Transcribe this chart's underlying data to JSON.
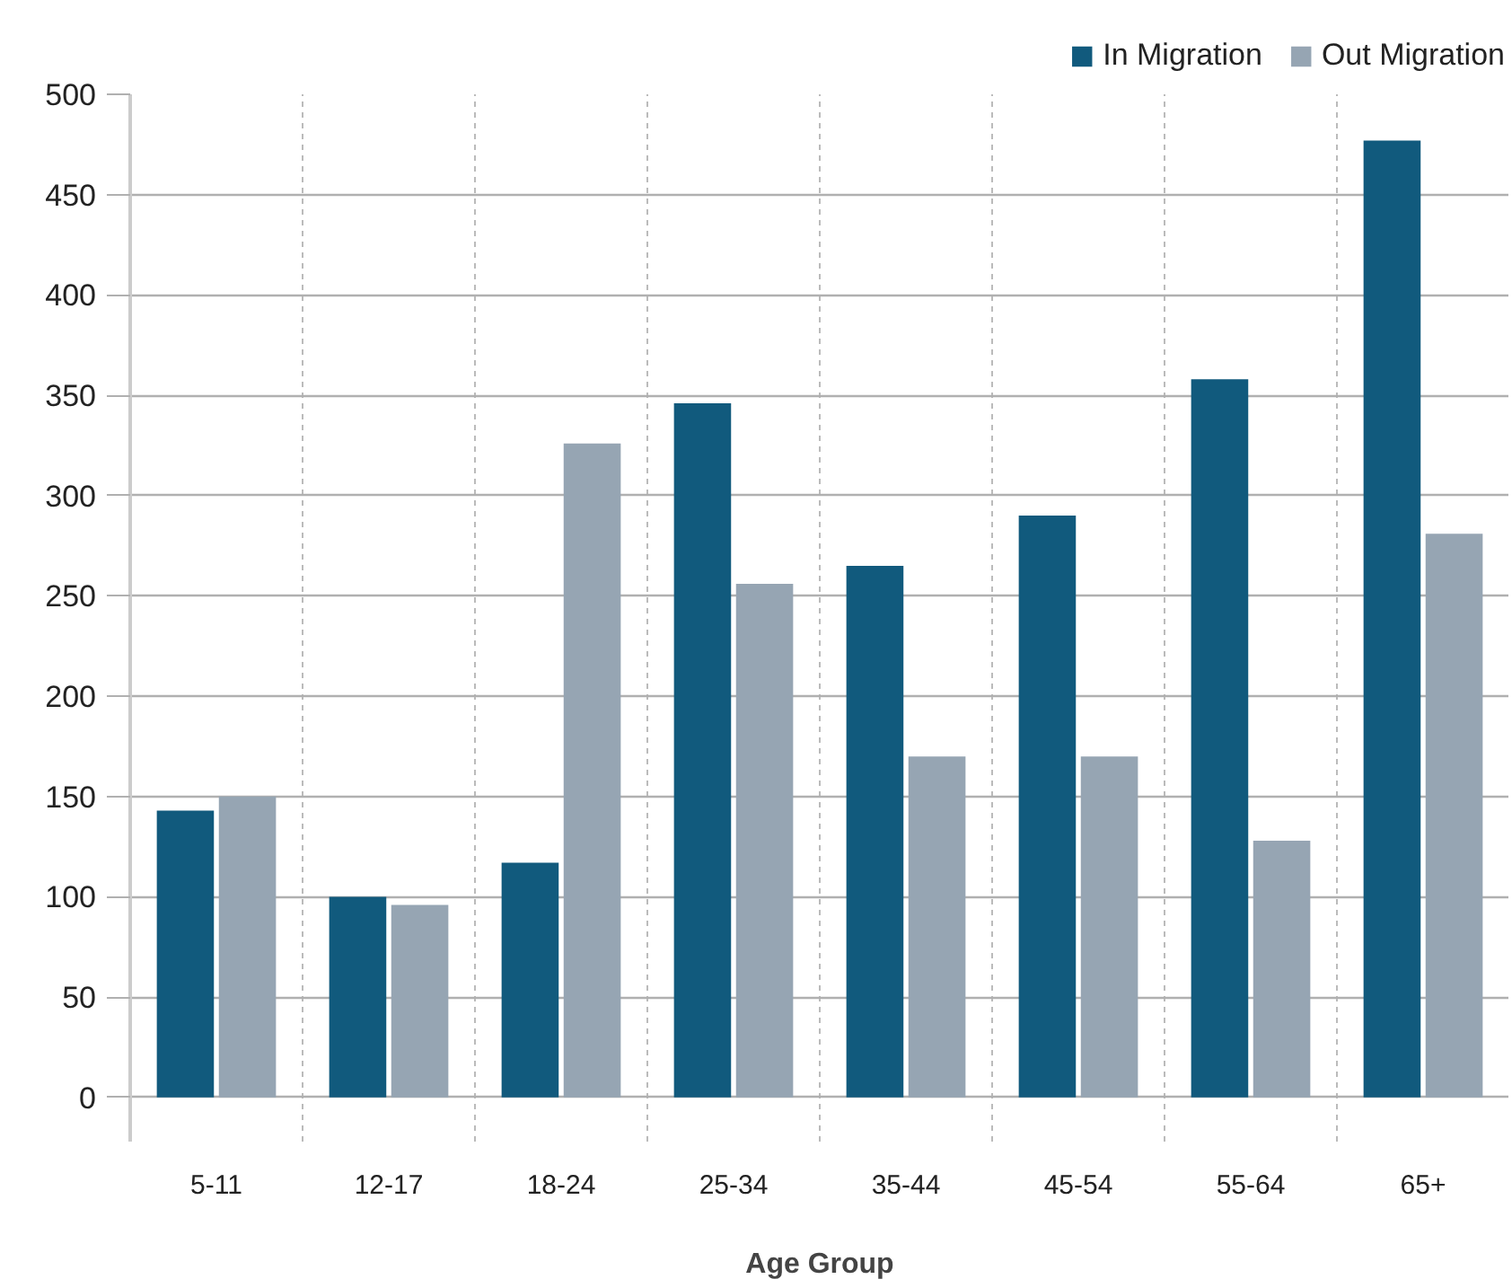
{
  "chart_data": {
    "type": "bar",
    "xlabel": "Age Group",
    "categories": [
      "5-11",
      "12-17",
      "18-24",
      "25-34",
      "35-44",
      "45-54",
      "55-64",
      "65+"
    ],
    "series": [
      {
        "name": "In Migration",
        "color": "#115a7d",
        "values": [
          143,
          100,
          117,
          346,
          265,
          290,
          358,
          477
        ]
      },
      {
        "name": "Out Migration",
        "color": "#96a5b3",
        "values": [
          150,
          96,
          326,
          256,
          170,
          170,
          128,
          281
        ]
      }
    ],
    "ylim": [
      -22,
      500
    ],
    "yticks": [
      0,
      50,
      100,
      150,
      200,
      250,
      300,
      350,
      400,
      450,
      500
    ],
    "grid": true,
    "legend": "top right"
  }
}
